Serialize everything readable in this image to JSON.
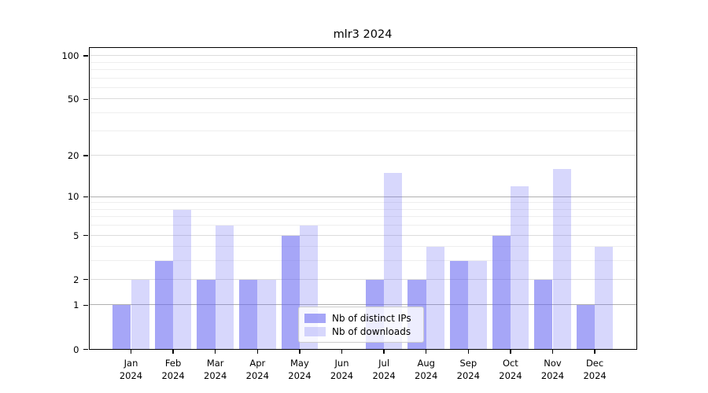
{
  "chart_data": {
    "type": "bar",
    "title": "mlr3 2024",
    "categories": [
      "Jan",
      "Feb",
      "Mar",
      "Apr",
      "May",
      "Jun",
      "Jul",
      "Aug",
      "Sep",
      "Oct",
      "Nov",
      "Dec"
    ],
    "category_year": "2024",
    "series": [
      {
        "name": "Nb of distinct IPs",
        "values": [
          1,
          3,
          2,
          2,
          5,
          0,
          2,
          2,
          3,
          5,
          2,
          1
        ]
      },
      {
        "name": "Nb of downloads",
        "values": [
          2,
          8,
          6,
          2,
          6,
          0,
          15,
          4,
          3,
          12,
          16,
          4
        ]
      }
    ],
    "y_axis": {
      "scale": "log1p",
      "tick_values": [
        0,
        1,
        2,
        5,
        10,
        20,
        50,
        100
      ],
      "tick_labels": [
        "0",
        "1",
        "2",
        "5",
        "10",
        "20",
        "50",
        "100"
      ],
      "minor_values": [
        3,
        4,
        6,
        7,
        8,
        9,
        30,
        40,
        60,
        70,
        80,
        90
      ],
      "emphasized_gridlines": [
        1,
        10
      ],
      "range_top": 115
    },
    "x_axis": {
      "label_line2": "2024"
    },
    "legend": {
      "position": "bottom-center",
      "entries": [
        "Nb of distinct IPs",
        "Nb of downloads"
      ]
    },
    "grid": true,
    "colors": {
      "bar_distinct_ips": "#a6a6f6",
      "bar_downloads": "#d9d9f7",
      "bar_base_rgba_dark": "rgba(102,102,242,0.58)",
      "bar_base_rgba_light": "rgba(102,102,242,0.26)",
      "grid_emphasis": "#b0b0b0",
      "grid_regular": "#dcdcdc",
      "grid_minor": "#eeeeee",
      "spine": "#000000",
      "legend_border": "#cccccc"
    }
  }
}
